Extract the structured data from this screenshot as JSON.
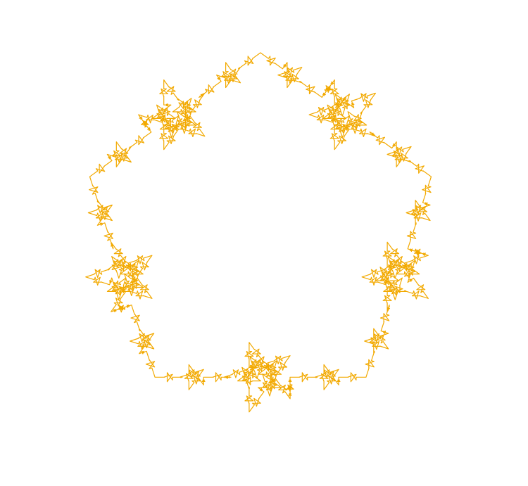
{
  "figure": {
    "kind": "pentagram-fractal",
    "stroke_color": "#f2a900",
    "background_color": "#ffffff",
    "recursion_depth": 4,
    "branch_count": 5
  }
}
